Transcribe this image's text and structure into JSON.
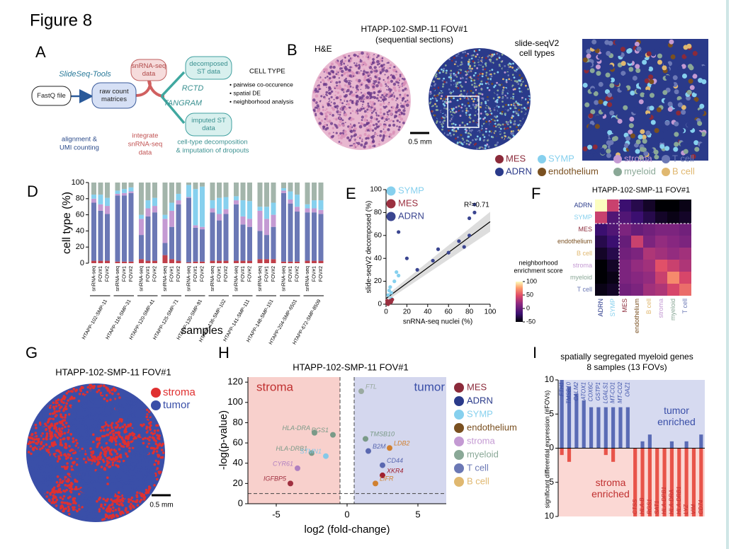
{
  "figure_title": "Figure 8",
  "panel_labels": [
    "A",
    "B",
    "C",
    "D",
    "E",
    "F",
    "G",
    "H",
    "I"
  ],
  "panel_a": {
    "nodes": [
      {
        "label": [
          "FastQ file"
        ]
      },
      {
        "label": [
          "raw count",
          "matrices"
        ]
      },
      {
        "label": [
          "snRNA-seq",
          "data"
        ]
      },
      {
        "label": [
          "decomposed",
          "ST data"
        ]
      },
      {
        "label": [
          "imputed ST",
          "data"
        ]
      }
    ],
    "tool": "SlideSeq-Tools",
    "methods": [
      "RCTD",
      "TANGRAM"
    ],
    "outputs_title": "CELL TYPE",
    "outputs": [
      "• pairwise co-occurence",
      "• spatial DE",
      "• neighborhood analysis"
    ],
    "notes": [
      [
        "alignment &",
        "UMI counting"
      ],
      [
        "integrate",
        "snRNA-seq",
        "data"
      ],
      [
        "cell-type decomposition",
        "& imputation of dropouts"
      ]
    ]
  },
  "panel_b": {
    "title": [
      "HTAPP-102-SMP-11 FOV#1",
      "(sequential sections)"
    ],
    "he_label": "H&E",
    "seq_label": [
      "slide-seqV2",
      "cell types"
    ],
    "scale_bar": "0.5 mm"
  },
  "cell_types": [
    {
      "name": "MES",
      "color": "#8b2a3a"
    },
    {
      "name": "SYMP",
      "color": "#86d0ee"
    },
    {
      "name": "stroma",
      "color": "#c49ad3"
    },
    {
      "name": "T cell",
      "color": "#6b78b5"
    },
    {
      "name": "ADRN",
      "color": "#2a3a8a"
    },
    {
      "name": "endothelium",
      "color": "#7a5020"
    },
    {
      "name": "myeloid",
      "color": "#8aa897"
    },
    {
      "name": "B cell",
      "color": "#e0b870"
    }
  ],
  "panel_g": {
    "title": "HTAPP-102-SMP-11 FOV#1",
    "legend": [
      {
        "name": "stroma",
        "color": "#e03030"
      },
      {
        "name": "tumor",
        "color": "#3a4fa8"
      }
    ],
    "scale_bar": "0.5 mm"
  },
  "chart_data": [
    {
      "type": "stacked_bar",
      "ylabel": "cell type (%)",
      "xlabel": "samples",
      "categories": [
        "snRNA-seq",
        "FOV#1",
        "FOV#2",
        "snRNA-seq",
        "FOV#1",
        "FOV#2",
        "snRNA-seq",
        "FOV#1",
        "FOV#2",
        "snRNA-seq",
        "FOV#1",
        "FOV#2",
        "snRNA-seq",
        "FOV#1",
        "FOV#2",
        "snRNA-seq",
        "FOV#1",
        "FOV#2",
        "snRNA-seq",
        "FOV#1",
        "FOV#2",
        "snRNA-seq",
        "FOV#1",
        "FOV#2",
        "snRNA-seq",
        "FOV#1",
        "FOV#2",
        "snRNA-seq",
        "FOV#1",
        "FOV#2"
      ],
      "groups": [
        "HTAPP-102-SMP-11",
        "HTAPP-116-SMP-31",
        "HTAPP-120-SMP-41",
        "HTAPP-125-SMP-71",
        "HTAPP-130-SMP-91",
        "HTAPP-136-SMP-102",
        "HTAPP-141-SMP-111",
        "HTAPP-148-SMP-151",
        "HTAPP-204-SMP-6501",
        "HTAPP-672-SMP-8509"
      ],
      "ylim": [
        0,
        100
      ],
      "yticks": [
        0,
        20,
        40,
        60,
        80,
        100
      ],
      "series": [
        {
          "name": "MES",
          "color": "#c0404a",
          "values": [
            3,
            3,
            3,
            2,
            2,
            2,
            5,
            3,
            3,
            10,
            5,
            3,
            1,
            2,
            2,
            3,
            3,
            3,
            3,
            3,
            3,
            5,
            5,
            5,
            2,
            2,
            2,
            3,
            3,
            3
          ]
        },
        {
          "name": "ADRN",
          "color": "#6b78b5",
          "values": [
            72,
            62,
            58,
            82,
            82,
            85,
            30,
            55,
            60,
            15,
            40,
            70,
            80,
            42,
            40,
            60,
            50,
            58,
            70,
            45,
            42,
            35,
            30,
            40,
            85,
            72,
            62,
            60,
            60,
            58
          ]
        },
        {
          "name": "stroma",
          "color": "#c49ad3",
          "values": [
            5,
            8,
            10,
            2,
            3,
            2,
            20,
            10,
            8,
            30,
            20,
            5,
            1,
            3,
            3,
            5,
            8,
            6,
            5,
            10,
            10,
            25,
            20,
            15,
            3,
            5,
            6,
            5,
            5,
            5
          ]
        },
        {
          "name": "SYMP",
          "color": "#86d0ee",
          "values": [
            5,
            12,
            10,
            4,
            5,
            5,
            5,
            10,
            10,
            5,
            10,
            8,
            15,
            45,
            50,
            10,
            20,
            15,
            5,
            20,
            22,
            5,
            15,
            15,
            3,
            10,
            15,
            5,
            10,
            12
          ]
        },
        {
          "name": "myeloid",
          "color": "#a3b5ab",
          "values": [
            15,
            15,
            19,
            10,
            8,
            6,
            40,
            22,
            19,
            40,
            25,
            14,
            3,
            8,
            5,
            22,
            19,
            18,
            17,
            22,
            23,
            30,
            30,
            25,
            7,
            11,
            15,
            27,
            22,
            22
          ]
        }
      ]
    },
    {
      "type": "scatter",
      "xlabel": "snRNA-seq nuclei (%)",
      "ylabel": "slide-seqV2 decomposed (%)",
      "xlim": [
        0,
        100
      ],
      "ylim": [
        0,
        100
      ],
      "xticks": [
        0,
        20,
        40,
        60,
        80,
        100
      ],
      "yticks": [
        0,
        20,
        40,
        60,
        80,
        100
      ],
      "annotation": "R²=0.71",
      "fit": {
        "x": [
          0,
          100
        ],
        "y": [
          5,
          72
        ]
      },
      "series": [
        {
          "name": "SYMP",
          "color": "#86d0ee",
          "x": [
            2,
            3,
            4,
            5,
            8,
            10,
            12,
            5
          ],
          "y": [
            8,
            12,
            15,
            10,
            20,
            28,
            25,
            5
          ]
        },
        {
          "name": "MES",
          "color": "#9b3040",
          "x": [
            1,
            2,
            3,
            4,
            5,
            6,
            1,
            2
          ],
          "y": [
            1,
            2,
            1,
            3,
            2,
            4,
            3,
            0
          ]
        },
        {
          "name": "ADRN",
          "color": "#3a4590",
          "x": [
            12,
            20,
            30,
            50,
            60,
            70,
            75,
            80,
            85,
            85,
            80,
            45
          ],
          "y": [
            63,
            40,
            30,
            48,
            45,
            55,
            50,
            75,
            87,
            80,
            60,
            38
          ]
        }
      ]
    },
    {
      "type": "heatmap",
      "title": "HTAPP-102-SMP-11 FOV#1",
      "rows": [
        "ADRN",
        "SYMP",
        "MES",
        "endothelium",
        "B cell",
        "stroma",
        "myeloid",
        "T cell"
      ],
      "cols": [
        "ADRN",
        "SYMP",
        "MES",
        "endothelium",
        "B cell",
        "stroma",
        "myeloid",
        "T cell"
      ],
      "values": [
        [
          100,
          40,
          -20,
          -30,
          -40,
          -50,
          -50,
          -45
        ],
        [
          40,
          -10,
          -10,
          -20,
          -30,
          -40,
          -45,
          -40
        ],
        [
          -20,
          -10,
          10,
          0,
          5,
          10,
          10,
          5
        ],
        [
          -30,
          -20,
          0,
          40,
          10,
          20,
          15,
          10
        ],
        [
          -40,
          -30,
          5,
          10,
          30,
          25,
          20,
          25
        ],
        [
          -50,
          -40,
          10,
          20,
          25,
          50,
          40,
          30
        ],
        [
          -50,
          -45,
          10,
          15,
          20,
          40,
          70,
          45
        ],
        [
          -45,
          -40,
          5,
          10,
          25,
          30,
          45,
          60
        ]
      ],
      "colorbar_label": [
        "neighborhood",
        "enrichment score"
      ],
      "clim": [
        -50,
        100
      ],
      "cticks": [
        -50,
        0,
        50,
        100
      ]
    },
    {
      "type": "volcano",
      "title": "HTAPP-102-SMP-11 FOV#1",
      "xlabel": "log2 (fold-change)",
      "ylabel": "-log(p-value)",
      "xlim": [
        -7,
        7
      ],
      "ylim": [
        0,
        125
      ],
      "xticks": [
        -5,
        0,
        5
      ],
      "yticks": [
        0,
        20,
        40,
        60,
        80,
        100,
        120
      ],
      "regions": [
        "stroma",
        "tumor"
      ],
      "thresholds": {
        "x": [
          -0.5,
          0.5
        ],
        "y": 10
      },
      "genes": [
        "FTL",
        "HLA-DRA",
        "RGS1",
        "HLA-DRB1",
        "STMN1",
        "CYR61",
        "IGFBP5",
        "TMSB10",
        "B2M",
        "LDB2",
        "CD44",
        "XKR4",
        "LIFR"
      ],
      "x": [
        1,
        -2.3,
        -1,
        -2.5,
        -1.5,
        -3.5,
        -4,
        1.3,
        1.5,
        3,
        2.5,
        2.5,
        2
      ],
      "y": [
        111,
        70,
        68,
        50,
        47,
        35,
        20,
        64,
        52,
        55,
        38,
        28,
        20
      ],
      "colors": [
        "#9aaaa0",
        "#7a9a88",
        "#7a9a88",
        "#7a9a88",
        "#86c8e8",
        "#b080c0",
        "#a03040",
        "#7a9a88",
        "#5a68b0",
        "#d08030",
        "#5a68b0",
        "#a02030",
        "#d08030"
      ],
      "legend": [
        {
          "name": "MES",
          "color": "#8b2a3a"
        },
        {
          "name": "ADRN",
          "color": "#2a3a8a"
        },
        {
          "name": "SYMP",
          "color": "#86d0ee"
        },
        {
          "name": "endothelium",
          "color": "#7a5020"
        },
        {
          "name": "stroma",
          "color": "#c49ad3"
        },
        {
          "name": "myeloid",
          "color": "#8aa897"
        },
        {
          "name": "T cell",
          "color": "#6b78b5"
        },
        {
          "name": "B cell",
          "color": "#e0b870"
        }
      ]
    },
    {
      "type": "diverging_bar",
      "title": [
        "spatially segregated myeloid genes",
        "8 samples (13 FOVs)"
      ],
      "ylabel": "significant differential expression (#FOVs)",
      "categories": [
        "FTH1",
        "TMSB10",
        "CALM2",
        "ATOX1",
        "COX6C",
        "GSTP1",
        "LGALS1",
        "MT-CO1",
        "MT-CO2",
        "OAZ1",
        "CTSS",
        "HLA-B",
        "RGS1",
        "SAT1",
        "HLA-DPB1",
        "HLA-DRA",
        "HLA-DRB1",
        "LYZ",
        "VIM",
        "CD74"
      ],
      "ylim": [
        -10,
        10
      ],
      "yticks": [
        {
          "value": -10,
          "label": "10"
        },
        {
          "value": -5,
          "label": "5"
        },
        0,
        5,
        10
      ],
      "series": [
        {
          "name": "tumor enriched",
          "color": "#5a6bb5",
          "values": [
            10,
            9,
            8,
            7,
            6,
            6,
            6,
            6,
            6,
            6,
            0,
            1,
            2,
            0,
            0,
            1,
            0,
            1,
            0,
            2
          ]
        },
        {
          "name": "stroma enriched",
          "color": "#e8544a",
          "values": [
            -1,
            -2,
            0,
            0,
            0,
            0,
            -1,
            -2,
            0,
            0,
            -10,
            -10,
            -10,
            -10,
            -10,
            -10,
            -10,
            -10,
            -10,
            -10
          ]
        }
      ]
    }
  ]
}
